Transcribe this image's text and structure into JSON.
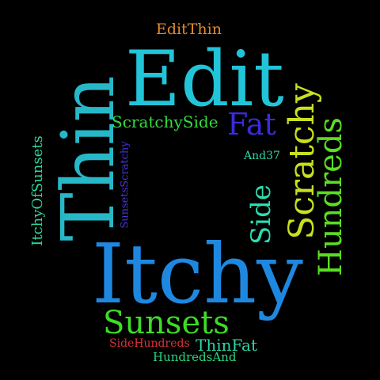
{
  "background": "#000000",
  "words": {
    "edit_thin": {
      "text": "EditThin",
      "color": "#E08A2C"
    },
    "edit": {
      "text": "Edit",
      "color": "#22C4D8"
    },
    "thin": {
      "text": "Thin",
      "color": "#26B8C8"
    },
    "scratchy_side": {
      "text": "ScratchySide",
      "color": "#33DD3A"
    },
    "fat": {
      "text": "Fat",
      "color": "#3A2BE0"
    },
    "scratchy": {
      "text": "Scratchy",
      "color": "#C8E020"
    },
    "hundreds": {
      "text": "Hundreds",
      "color": "#5ADD22"
    },
    "and37": {
      "text": "And37",
      "color": "#2CD6A6"
    },
    "itchy_of_sunsets": {
      "text": "ItchyOfSunsets",
      "color": "#2CD69A"
    },
    "sunsets_scratchy": {
      "text": "SunsetsScratchy",
      "color": "#4A35D8"
    },
    "side": {
      "text": "Side",
      "color": "#2CDDB0"
    },
    "itchy": {
      "text": "Itchy",
      "color": "#1E88E0"
    },
    "sunsets": {
      "text": "Sunsets",
      "color": "#3CDD26"
    },
    "side_hundreds": {
      "text": "SideHundreds",
      "color": "#E0303A"
    },
    "thin_fat": {
      "text": "ThinFat",
      "color": "#2CD6A6"
    },
    "hundreds_and": {
      "text": "HundredsAnd",
      "color": "#2CD680"
    }
  }
}
